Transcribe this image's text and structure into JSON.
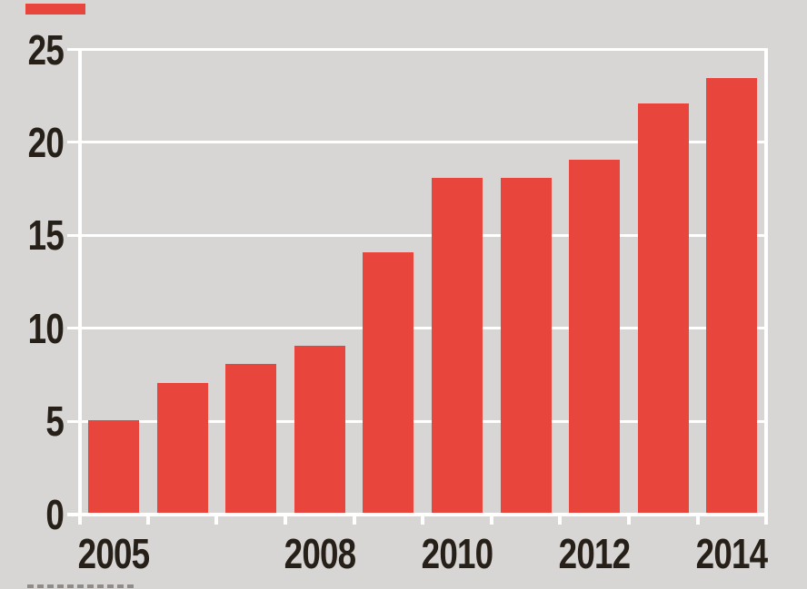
{
  "chart_data": {
    "type": "bar",
    "title": "",
    "categories": [
      "2005",
      "2006",
      "2007",
      "2008",
      "2009",
      "2010",
      "2011",
      "2012",
      "2013",
      "2014"
    ],
    "values": [
      5,
      7,
      8,
      9,
      14,
      18,
      18,
      19,
      22,
      23.4
    ],
    "yticks": [
      0,
      5,
      10,
      15,
      20,
      25
    ],
    "ytick_labels": [
      "0",
      "5",
      "10",
      "15",
      "20",
      "25"
    ],
    "xtick_labels_shown": [
      "2005",
      "2008",
      "2010",
      "2012",
      "2014"
    ],
    "xlabel": "",
    "ylabel": "",
    "ylim": [
      0,
      25
    ],
    "grid": "horizontal-white-gridlines",
    "legend_position": "none",
    "bar_color": "#e8453c",
    "background_color": "#d7d6d4",
    "gridline_color": "#ffffff",
    "label_color": "#272019"
  },
  "decorations": {
    "red_tab_color": "#e8453c",
    "clipped_caption_visible": true
  }
}
